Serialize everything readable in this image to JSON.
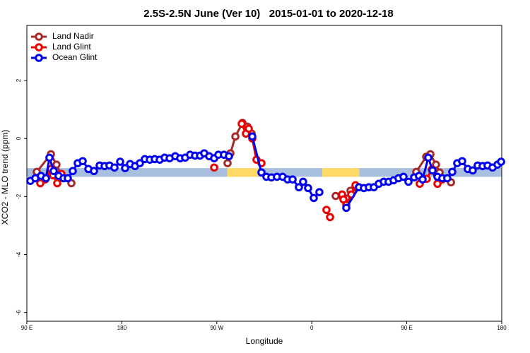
{
  "chart_data": {
    "type": "line",
    "title": "2.5S-2.5N June (Ver 10)   2015-01-01 to 2020-12-18",
    "x_label": "Longitude",
    "y_label": "XCO2 - MLO trend (ppm)",
    "xlim": [
      90,
      540
    ],
    "ylim": [
      -6.3,
      3.9
    ],
    "xticks": [
      {
        "value": 90,
        "label": "90 E"
      },
      {
        "value": 180,
        "label": "180"
      },
      {
        "value": 270,
        "label": "90 W"
      },
      {
        "value": 360,
        "label": "0"
      },
      {
        "value": 450,
        "label": "90 E"
      },
      {
        "value": 540,
        "label": "180"
      }
    ],
    "yticks": [
      2,
      0,
      -2,
      -4,
      -6
    ],
    "legend": "top-left",
    "band": {
      "ylim": [
        -1.32,
        -1.02
      ],
      "segments": [
        {
          "x": [
            90,
            280
          ],
          "color": "#a8bfe0"
        },
        {
          "x": [
            280,
            309
          ],
          "color": "#ffd966"
        },
        {
          "x": [
            309,
            370
          ],
          "color": "#a8bfe0"
        },
        {
          "x": [
            370,
            405
          ],
          "color": "#ffd966"
        },
        {
          "x": [
            405,
            540
          ],
          "color": "#a8bfe0"
        }
      ]
    },
    "series": [
      {
        "name": "Land Nadir",
        "color": "#a52a2a",
        "x": [
          99.4,
          112.8,
          118.1,
          122.1,
          132.2,
          null,
          280.2,
          282.9,
          287.6,
          294.3,
          299.0,
          303.0,
          null,
          382.6,
          388.7,
          393.3,
          396.7,
          401.4,
          null,
          459.0,
          468.4,
          472.4,
          477.7,
          481.1,
          491.9
        ],
        "values": [
          -1.15,
          -0.54,
          -0.9,
          -1.22,
          -1.54,
          null,
          -0.85,
          -0.51,
          0.07,
          0.54,
          0.41,
          0.17,
          null,
          -1.98,
          -1.98,
          -2.07,
          -1.8,
          -1.68,
          null,
          -1.15,
          -0.63,
          -0.54,
          -0.9,
          -1.17,
          -1.51
        ]
      },
      {
        "name": "Land Glint",
        "color": "#ee0000",
        "x": [
          102.7,
          107.4,
          112.8,
          114.8,
          118.8,
          122.8,
          null,
          267.5,
          null,
          293.6,
          297.6,
          300.3,
          303.6,
          307.6,
          312.3,
          null,
          373.9,
          377.3,
          null,
          388.7,
          390.0,
          392.7,
          397.4,
          401.4,
          null,
          462.3,
          469.0,
          473.7,
          479.1,
          483.7
        ],
        "values": [
          -1.54,
          -1.41,
          -1.05,
          -1.27,
          -1.54,
          -1.22,
          null,
          -1.0,
          null,
          0.51,
          0.17,
          0.34,
          0,
          -0.73,
          -0.85,
          null,
          -2.46,
          -2.71,
          null,
          -1.93,
          -2.1,
          -2.29,
          -1.93,
          -1.61,
          null,
          -1.56,
          -1.39,
          -1.07,
          -1.56,
          -1.41
        ]
      },
      {
        "name": "Ocean Glint",
        "color": "#0000ee",
        "x": [
          93.3,
          98.0,
          103.4,
          108.1,
          111.4,
          115.4,
          120.1,
          124.8,
          128.8,
          133.5,
          138.2,
          142.9,
          148.3,
          153.6,
          159.0,
          163.7,
          168.3,
          173.0,
          178.4,
          183.1,
          187.8,
          192.5,
          197.1,
          201.8,
          206.5,
          211.2,
          215.9,
          220.6,
          225.3,
          230.6,
          235.3,
          240.0,
          244.7,
          249.4,
          254.1,
          258.1,
          262.8,
          267.5,
          271.5,
          276.8,
          281.5,
          null,
          303.6,
          312.3,
          317.0,
          321.7,
          327.0,
          332.4,
          337.1,
          341.8,
          347.8,
          351.8,
          356.5,
          361.9,
          367.2,
          null,
          392.7,
          404.7,
          409.4,
          414.1,
          418.8,
          423.5,
          428.2,
          432.8,
          437.5,
          442.2,
          446.9,
          451.6,
          457.0,
          461.6,
          465.0,
          470.4,
          474.4,
          479.1,
          483.7,
          488.4,
          493.1,
          497.8,
          502.5,
          507.8,
          512.5,
          517.2,
          521.9,
          526.6,
          531.3,
          536.0,
          539.4
        ],
        "values": [
          -1.46,
          -1.37,
          -1.29,
          -1.37,
          -0.66,
          -1.12,
          -1.29,
          -1.37,
          -1.37,
          -1.12,
          -0.85,
          -0.78,
          -1.05,
          -1.12,
          -0.93,
          -0.95,
          -0.93,
          -1.0,
          -0.8,
          -1.02,
          -0.88,
          -0.95,
          -0.85,
          -0.71,
          -0.73,
          -0.71,
          -0.73,
          -0.66,
          -0.68,
          -0.61,
          -0.68,
          -0.66,
          -0.56,
          -0.59,
          -0.59,
          -0.51,
          -0.61,
          -0.68,
          -0.56,
          -0.56,
          -0.61,
          null,
          0.07,
          -1.17,
          -1.32,
          -1.34,
          -1.32,
          -1.32,
          -1.41,
          -1.41,
          -1.68,
          -1.49,
          -1.71,
          -2.05,
          -1.85,
          null,
          -2.39,
          -1.68,
          -1.71,
          -1.68,
          -1.68,
          -1.56,
          -1.49,
          -1.49,
          -1.44,
          -1.37,
          -1.32,
          -1.49,
          -1.34,
          -1.29,
          -1.41,
          -0.66,
          -1.1,
          -1.32,
          -1.37,
          -1.37,
          -1.15,
          -0.85,
          -0.78,
          -1.05,
          -1.1,
          -0.93,
          -0.95,
          -0.93,
          -1.0,
          -0.9,
          -0.8
        ]
      }
    ]
  }
}
